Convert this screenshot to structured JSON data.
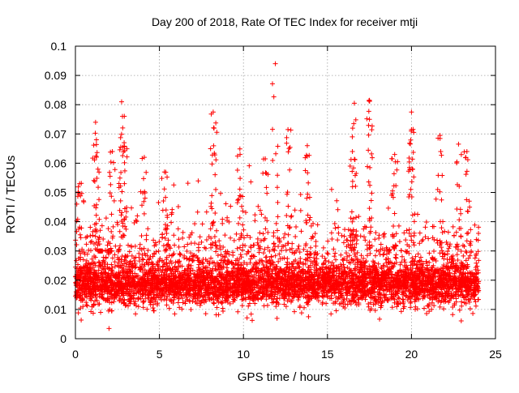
{
  "chart_data": {
    "type": "scatter",
    "title": "Day 200 of 2018, Rate Of TEC Index for receiver mtji",
    "xlabel": "GPS time / hours",
    "ylabel": "ROTI / TECUs",
    "xlim": [
      0,
      25
    ],
    "ylim": [
      0,
      0.1
    ],
    "xticks": [
      0,
      5,
      10,
      15,
      20,
      25
    ],
    "xtick_labels": [
      "0",
      "5",
      "10",
      "15",
      "20",
      "25"
    ],
    "yticks": [
      0,
      0.01,
      0.02,
      0.03,
      0.04,
      0.05,
      0.06,
      0.07,
      0.08,
      0.09,
      0.1
    ],
    "ytick_labels": [
      "0",
      "0.01",
      "0.02",
      "0.03",
      "0.04",
      "0.05",
      "0.06",
      "0.07",
      "0.08",
      "0.09",
      "0.1"
    ],
    "grid": true,
    "marker": "+",
    "marker_color": "#ff0000",
    "series": [
      {
        "name": "ROTI",
        "x_range": [
          0,
          24
        ],
        "typical_band": [
          0.007,
          0.03
        ],
        "notable_points": [
          {
            "x": 11.9,
            "y": 0.094
          },
          {
            "x": 2.75,
            "y": 0.081
          },
          {
            "x": 17.5,
            "y": 0.0815
          },
          {
            "x": 16.6,
            "y": 0.0805
          },
          {
            "x": 8.2,
            "y": 0.0775
          },
          {
            "x": 20.0,
            "y": 0.0775
          },
          {
            "x": 2.8,
            "y": 0.076
          },
          {
            "x": 17.5,
            "y": 0.075
          },
          {
            "x": 1.2,
            "y": 0.074
          },
          {
            "x": 8.25,
            "y": 0.072
          },
          {
            "x": 16.5,
            "y": 0.072
          },
          {
            "x": 12.65,
            "y": 0.0715
          },
          {
            "x": 20.0,
            "y": 0.0715
          },
          {
            "x": 21.7,
            "y": 0.0695
          },
          {
            "x": 1.25,
            "y": 0.068
          },
          {
            "x": 2.9,
            "y": 0.067
          },
          {
            "x": 22.8,
            "y": 0.0665
          },
          {
            "x": 13.8,
            "y": 0.066
          },
          {
            "x": 23.3,
            "y": 0.064
          },
          {
            "x": 2.2,
            "y": 0.064
          },
          {
            "x": 9.8,
            "y": 0.063
          },
          {
            "x": 4.1,
            "y": 0.062
          },
          {
            "x": 11.3,
            "y": 0.0615
          },
          {
            "x": 19.0,
            "y": 0.063
          },
          {
            "x": 0.25,
            "y": 0.053
          },
          {
            "x": 5.3,
            "y": 0.057
          },
          {
            "x": 2.0,
            "y": 0.0035
          },
          {
            "x": 1.5,
            "y": 0.009
          }
        ]
      }
    ]
  }
}
